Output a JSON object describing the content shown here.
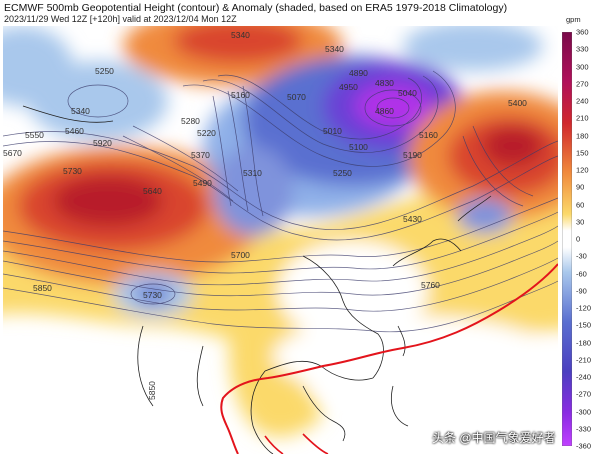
{
  "title": "ECMWF 500mb Geopotential Height (contour) & Anomaly (shaded, based on ERA5 1979-2018 Climatology)",
  "subtitle": "2023/11/29 Wed 12Z [+120h] valid at 2023/12/04 Mon 12Z",
  "colorbar": {
    "unit": "gpm",
    "labels": [
      "360",
      "330",
      "300",
      "270",
      "240",
      "210",
      "180",
      "150",
      "120",
      "90",
      "60",
      "30",
      "0",
      "-30",
      "-60",
      "-90",
      "-120",
      "-150",
      "-180",
      "-210",
      "-240",
      "-270",
      "-300",
      "-330",
      "-360"
    ]
  },
  "contour_labels": [
    "5340",
    "5250",
    "5340",
    "5460",
    "5550",
    "5670",
    "5730",
    "5640",
    "5920",
    "5160",
    "5280",
    "5220",
    "5370",
    "5490",
    "5070",
    "5010",
    "5100",
    "4950",
    "4890",
    "4830",
    "4860",
    "5040",
    "5310",
    "5160",
    "5190",
    "5340",
    "5400",
    "5250",
    "5430",
    "5700",
    "5730",
    "5850",
    "5760",
    "5850"
  ],
  "watermark": "头条 @中国气象爱好者",
  "colors": {
    "positive_strong": "#c0262d",
    "positive_mid": "#f08a3c",
    "positive_weak": "#fbd96a",
    "neutral": "#ffffff",
    "negative_weak": "#a9c8ec",
    "negative_mid": "#5a6fd0",
    "negative_strong": "#8a2be2",
    "contour": "#3b3b6b",
    "snow_line": "#e3141c",
    "coastline": "#222222"
  }
}
